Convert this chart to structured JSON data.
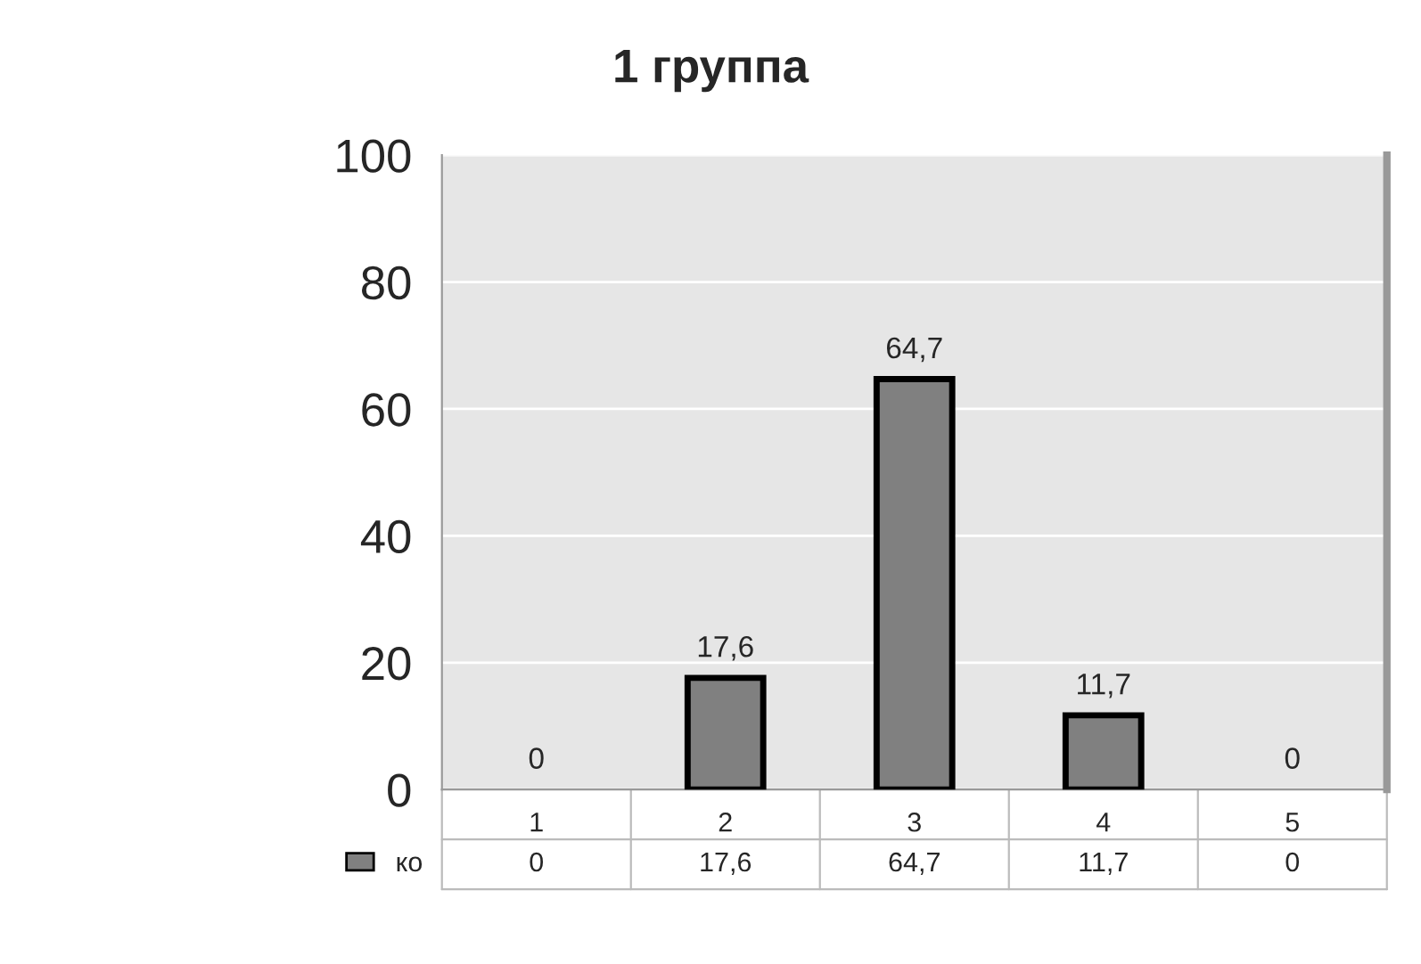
{
  "chart_data": {
    "type": "bar",
    "title": "1 группа",
    "categories": [
      "1",
      "2",
      "3",
      "4",
      "5"
    ],
    "series": [
      {
        "name": "ко",
        "color": "#808080",
        "values": [
          0,
          17.6,
          64.7,
          11.7,
          0
        ],
        "value_labels": [
          "0",
          "17,6",
          "64,7",
          "11,7",
          "0"
        ]
      }
    ],
    "ylim": [
      0,
      100
    ],
    "yticks": [
      0,
      20,
      40,
      60,
      80,
      100
    ],
    "grid": "y",
    "legend": "bottom left",
    "data_labels": false
  }
}
